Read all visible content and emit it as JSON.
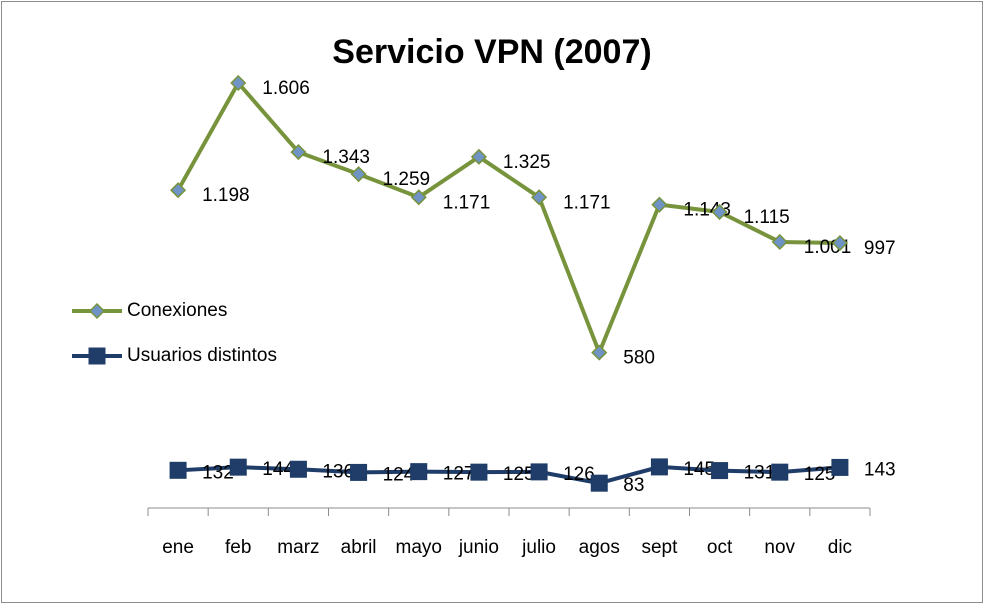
{
  "chart_data": {
    "type": "line",
    "title": "Servicio VPN (2007)",
    "categories": [
      "ene",
      "feb",
      "marz",
      "abril",
      "mayo",
      "junio",
      "julio",
      "agos",
      "sept",
      "oct",
      "nov",
      "dic"
    ],
    "series": [
      {
        "name": "Conexiones",
        "color": "#77933c",
        "marker": "diamond",
        "marker_color": "#6f93c4",
        "values": [
          1198,
          1606,
          1343,
          1259,
          1171,
          1325,
          1171,
          580,
          1143,
          1115,
          1001,
          997
        ],
        "value_labels": [
          "1.198",
          "1.606",
          "1.343",
          "1.259",
          "1.171",
          "1.325",
          "1.171",
          "580",
          "1.143",
          "1.115",
          "1.001",
          "997"
        ]
      },
      {
        "name": "Usuarios distintos",
        "color": "#1f3d68",
        "marker": "square",
        "marker_color": "#1f3d68",
        "values": [
          132,
          144,
          136,
          124,
          127,
          125,
          126,
          83,
          145,
          131,
          125,
          143
        ]
      }
    ],
    "ylim": [
      0,
      1800
    ],
    "grid": false,
    "legend": "left"
  }
}
